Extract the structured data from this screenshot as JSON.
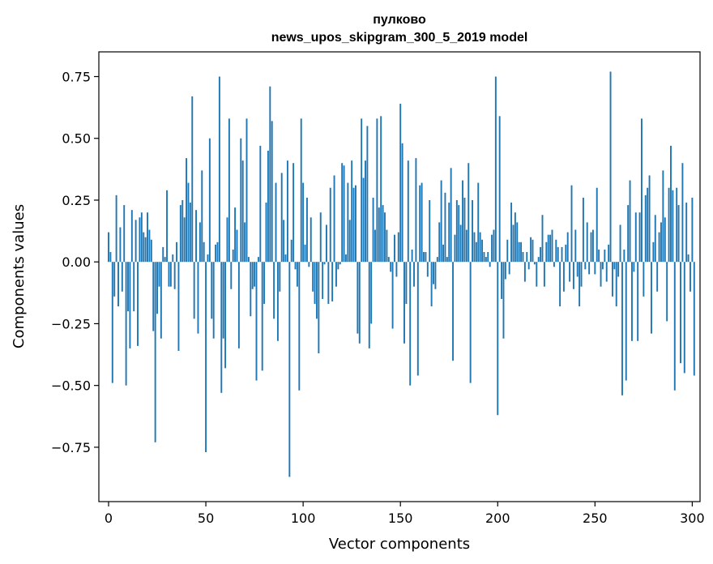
{
  "chart_data": {
    "type": "bar",
    "title": "пулково",
    "subtitle": "news_upos_skipgram_300_5_2019 model",
    "xlabel": "Vector components",
    "ylabel": "Components values",
    "xlim": [
      -5,
      304
    ],
    "ylim": [
      -0.97,
      0.85
    ],
    "xticks": [
      0,
      50,
      100,
      150,
      200,
      250,
      300
    ],
    "yticks": [
      -0.75,
      -0.5,
      -0.25,
      0.0,
      0.25,
      0.5,
      0.75
    ],
    "ytick_labels": [
      "−0.75",
      "−0.50",
      "−0.25",
      "0.00",
      "0.25",
      "0.50",
      "0.75"
    ],
    "xtick_labels": [
      "0",
      "50",
      "100",
      "150",
      "200",
      "250",
      "300"
    ],
    "color": "#1f77b4",
    "values": [
      0.12,
      0.04,
      -0.49,
      -0.14,
      0.27,
      -0.18,
      0.14,
      -0.12,
      0.23,
      -0.5,
      -0.2,
      -0.35,
      0.21,
      -0.2,
      0.17,
      -0.34,
      0.18,
      0.2,
      0.12,
      0.1,
      0.2,
      0.13,
      0.09,
      -0.28,
      -0.73,
      -0.21,
      -0.1,
      -0.31,
      0.06,
      0.02,
      0.29,
      -0.1,
      -0.1,
      0.03,
      -0.11,
      0.08,
      -0.36,
      0.23,
      0.25,
      0.18,
      0.42,
      0.32,
      0.24,
      0.67,
      -0.23,
      0.21,
      -0.29,
      0.16,
      0.37,
      0.08,
      -0.77,
      0.03,
      0.5,
      -0.23,
      -0.31,
      0.07,
      0.08,
      0.75,
      -0.53,
      -0.31,
      -0.43,
      0.18,
      0.58,
      -0.11,
      0.05,
      0.22,
      0.13,
      -0.35,
      0.5,
      0.41,
      0.16,
      0.58,
      0.02,
      -0.22,
      -0.11,
      -0.1,
      -0.48,
      0.02,
      0.47,
      -0.44,
      -0.17,
      0.24,
      0.45,
      0.71,
      0.57,
      -0.23,
      0.32,
      -0.32,
      -0.12,
      0.36,
      0.17,
      0.03,
      0.41,
      -0.87,
      0.09,
      0.4,
      -0.03,
      -0.1,
      -0.52,
      0.58,
      0.32,
      0.07,
      0.26,
      -0.02,
      0.18,
      -0.12,
      -0.17,
      -0.23,
      -0.37,
      0.2,
      -0.15,
      -0.01,
      0.15,
      -0.17,
      0.3,
      -0.16,
      0.35,
      -0.1,
      -0.03,
      -0.01,
      0.4,
      0.39,
      0.03,
      0.32,
      0.17,
      0.41,
      0.3,
      0.31,
      -0.29,
      -0.33,
      0.58,
      0.34,
      0.41,
      0.55,
      -0.35,
      -0.25,
      0.26,
      0.13,
      0.58,
      0.22,
      0.59,
      0.23,
      0.2,
      0.13,
      0.02,
      -0.04,
      -0.27,
      0.11,
      -0.06,
      0.12,
      0.64,
      0.48,
      -0.33,
      -0.17,
      0.41,
      -0.5,
      0.05,
      -0.1,
      0.42,
      -0.46,
      0.31,
      0.32,
      0.04,
      0.04,
      -0.06,
      0.25,
      -0.18,
      -0.09,
      -0.11,
      0.02,
      0.16,
      0.33,
      0.07,
      0.28,
      0.02,
      0.24,
      0.38,
      -0.4,
      0.11,
      0.25,
      0.23,
      0.15,
      0.33,
      0.26,
      0.13,
      0.4,
      -0.49,
      0.25,
      0.12,
      0.08,
      0.32,
      0.12,
      0.09,
      0.04,
      0.02,
      0.04,
      -0.02,
      0.11,
      0.13,
      0.75,
      -0.62,
      0.59,
      -0.15,
      -0.31,
      -0.07,
      0.09,
      -0.05,
      0.24,
      0.15,
      0.2,
      0.16,
      0.08,
      0.08,
      0.04,
      -0.08,
      0.04,
      -0.03,
      0.1,
      0.09,
      -0.01,
      -0.1,
      0.02,
      0.06,
      0.19,
      -0.1,
      0.08,
      0.11,
      0.11,
      0.13,
      -0.02,
      0.09,
      0.06,
      -0.18,
      0.06,
      -0.12,
      0.07,
      0.12,
      -0.08,
      0.31,
      -0.11,
      0.13,
      -0.06,
      -0.18,
      -0.1,
      0.26,
      -0.03,
      0.16,
      -0.05,
      0.12,
      0.13,
      -0.05,
      0.3,
      0.05,
      -0.1,
      -0.03,
      0.05,
      -0.08,
      0.07,
      0.77,
      -0.14,
      -0.03,
      -0.18,
      -0.06,
      0.15,
      -0.54,
      0.05,
      -0.48,
      0.23,
      0.33,
      -0.32,
      -0.04,
      0.2,
      -0.32,
      0.2,
      0.58,
      -0.14,
      0.27,
      0.3,
      0.35,
      -0.29,
      0.08,
      0.19,
      -0.12,
      0.12,
      0.16,
      0.37,
      0.18,
      -0.24,
      0.3,
      0.47,
      0.29,
      -0.52,
      0.3,
      0.23,
      -0.41,
      0.4,
      -0.45,
      0.24,
      0.03,
      -0.12,
      0.26,
      -0.46
    ]
  }
}
